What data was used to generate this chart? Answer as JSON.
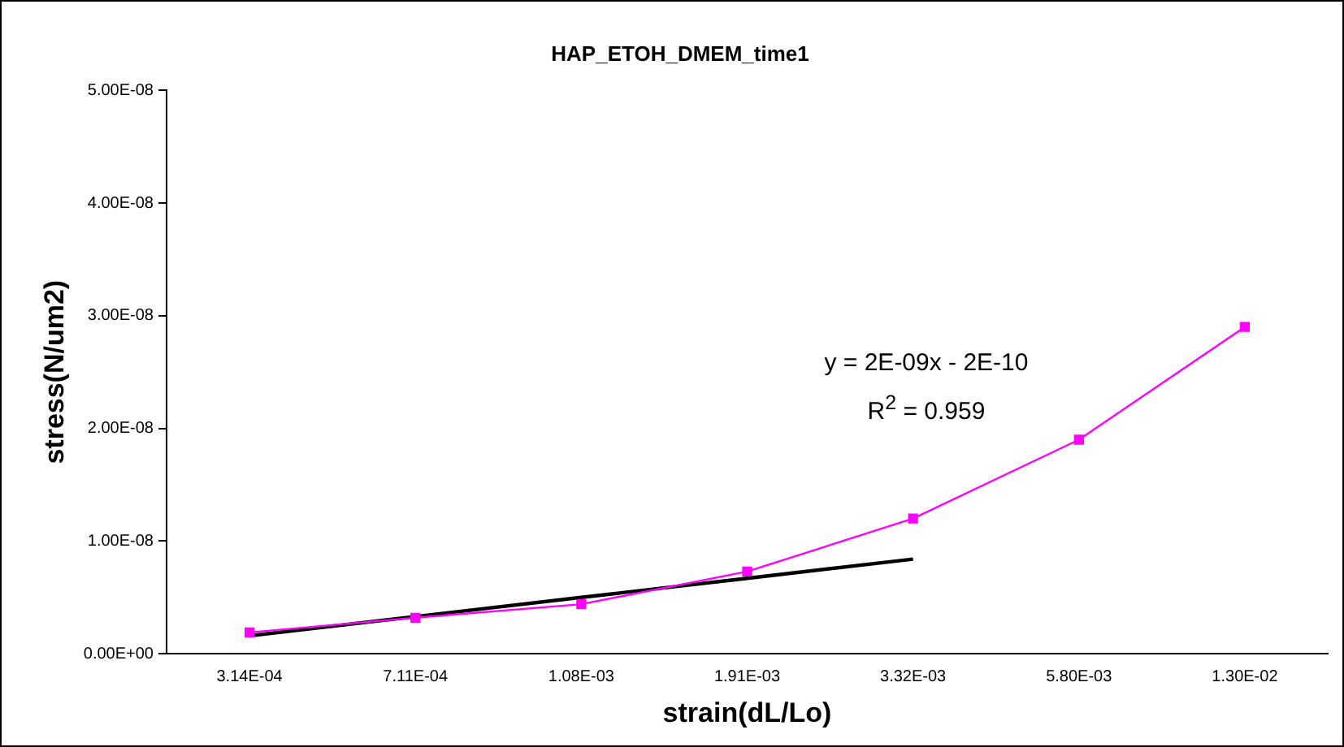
{
  "chart_data": {
    "type": "line",
    "title": "HAP_ETOH_DMEM_time1",
    "xlabel": "strain(dL/Lo)",
    "ylabel": "stress(N/um2)",
    "categories": [
      "3.14E-04",
      "7.11E-04",
      "1.08E-03",
      "1.91E-03",
      "3.32E-03",
      "5.80E-03",
      "1.30E-02"
    ],
    "series": [
      {
        "type": "line",
        "color": "#ff00ff",
        "marker": "square",
        "values": [
          1.9e-09,
          3.2e-09,
          4.4e-09,
          7.3e-09,
          1.2e-08,
          1.9e-08,
          2.9e-08
        ]
      },
      {
        "type": "line",
        "color": "#000000",
        "marker": "none",
        "values": [
          1.6e-09,
          3.3e-09,
          5e-09,
          6.7e-09,
          8.4e-09,
          null,
          null
        ]
      }
    ],
    "ylim": [
      0,
      5e-08
    ],
    "yticks": [
      {
        "value": 0,
        "label": "0.00E+00"
      },
      {
        "value": 1e-08,
        "label": "1.00E-08"
      },
      {
        "value": 2e-08,
        "label": "2.00E-08"
      },
      {
        "value": 3e-08,
        "label": "3.00E-08"
      },
      {
        "value": 4e-08,
        "label": "4.00E-08"
      },
      {
        "value": 5e-08,
        "label": "5.00E-08"
      }
    ],
    "annotations": [
      "y = 2E-09x - 2E-10",
      "R$^{2}$ = 0.959"
    ],
    "grid": false,
    "legend": false
  }
}
